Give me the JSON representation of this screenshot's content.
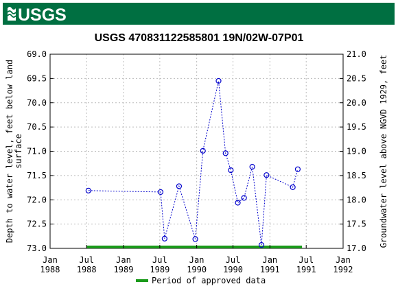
{
  "header": {
    "logo_text": "USGS",
    "bg_color": "#006f41"
  },
  "chart_data": {
    "type": "scatter",
    "title": "USGS 470831122585801 19N/02W-07P01",
    "ylabel_left": "Depth to water level, feet below land surface",
    "ylabel_right": "Groundwater level above NGVD 1929, feet",
    "left_ticks": [
      "69.0",
      "69.5",
      "70.0",
      "70.5",
      "71.0",
      "71.5",
      "72.0",
      "72.5",
      "73.0"
    ],
    "right_ticks": [
      "21.0",
      "20.5",
      "20.0",
      "19.5",
      "19.0",
      "18.5",
      "18.0",
      "17.5",
      "17.0"
    ],
    "ylim": [
      69.0,
      73.0
    ],
    "y_inverted": true,
    "xlim": [
      "1988-01-01",
      "1992-01-01"
    ],
    "x_ticks": [
      {
        "date": "1988-01-01",
        "top": "Jan",
        "bottom": "1988"
      },
      {
        "date": "1988-07-01",
        "top": "Jul",
        "bottom": "1988"
      },
      {
        "date": "1989-01-01",
        "top": "Jan",
        "bottom": "1989"
      },
      {
        "date": "1989-07-01",
        "top": "Jul",
        "bottom": "1989"
      },
      {
        "date": "1990-01-01",
        "top": "Jan",
        "bottom": "1990"
      },
      {
        "date": "1990-07-01",
        "top": "Jul",
        "bottom": "1990"
      },
      {
        "date": "1991-01-01",
        "top": "Jan",
        "bottom": "1991"
      },
      {
        "date": "1991-07-01",
        "top": "Jul",
        "bottom": "1991"
      },
      {
        "date": "1992-01-01",
        "top": "Jan",
        "bottom": "1992"
      }
    ],
    "series": [
      {
        "points": [
          {
            "x": "1988-07-10",
            "y": 71.81
          },
          {
            "x": "1989-07-05",
            "y": 71.84
          },
          {
            "x": "1989-07-25",
            "y": 72.8
          },
          {
            "x": "1989-10-05",
            "y": 71.72
          },
          {
            "x": "1989-12-25",
            "y": 72.81
          },
          {
            "x": "1990-02-01",
            "y": 70.99
          },
          {
            "x": "1990-04-20",
            "y": 69.55
          },
          {
            "x": "1990-05-25",
            "y": 71.04
          },
          {
            "x": "1990-06-20",
            "y": 71.39
          },
          {
            "x": "1990-07-25",
            "y": 72.06
          },
          {
            "x": "1990-08-25",
            "y": 71.96
          },
          {
            "x": "1990-10-05",
            "y": 71.32
          },
          {
            "x": "1990-11-20",
            "y": 72.93
          },
          {
            "x": "1990-12-15",
            "y": 71.49
          },
          {
            "x": "1991-04-25",
            "y": 71.74
          },
          {
            "x": "1991-05-20",
            "y": 71.37
          }
        ],
        "color": "#0000cc"
      }
    ],
    "approved_period": {
      "start": "1988-07-01",
      "end": "1991-06-10",
      "color": "#1a9a1a"
    },
    "legend": {
      "label": "Period of approved data",
      "placement": "bottom"
    },
    "grid": true
  }
}
